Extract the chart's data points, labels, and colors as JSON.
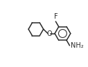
{
  "background_color": "#ffffff",
  "line_color": "#2a2a2a",
  "line_width": 1.1,
  "label_F": "F",
  "label_NH2": "NH₂",
  "label_O": "O",
  "font_size_label": 7.0,
  "fig_width": 1.27,
  "fig_height": 0.97,
  "dpi": 100,
  "xlim": [
    0.0,
    4.2
  ],
  "ylim": [
    0.3,
    3.2
  ]
}
